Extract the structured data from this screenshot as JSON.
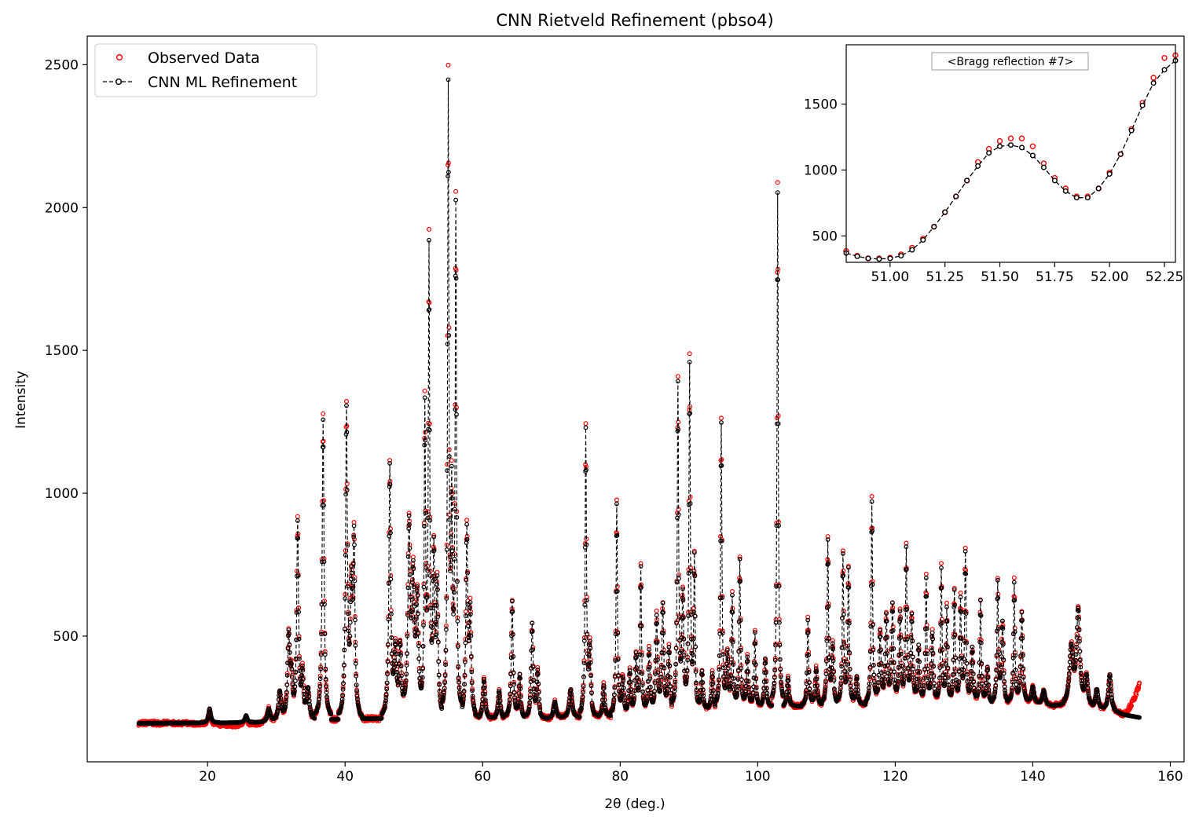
{
  "chart_data": [
    {
      "type": "scatter",
      "title": "CNN Rietveld Refinement (pbso4)",
      "xlabel": "2θ (deg.)",
      "ylabel": "Intensity",
      "xlim": [
        2.5,
        162
      ],
      "ylim": [
        60,
        2600
      ],
      "xticks": [
        20,
        40,
        60,
        80,
        100,
        120,
        140,
        160
      ],
      "yticks": [
        500,
        1000,
        1500,
        2000,
        2500
      ],
      "grid": false,
      "legend_position": "top-left",
      "x_range_data": [
        10,
        155.5
      ],
      "series": [
        {
          "name": "Observed Data",
          "style": "open-circle-markers",
          "color": "#ff0000",
          "noise_amplitude": 8,
          "peak_intensity_scale": 1.02,
          "background_low": [
            [
              10,
              215
            ],
            [
              17,
              195
            ],
            [
              24,
              188
            ],
            [
              28,
              195
            ]
          ],
          "background_high": [
            [
              153,
              262
            ],
            [
              155.5,
              330
            ]
          ]
        },
        {
          "name": "CNN ML Refinement",
          "style": "dashed-line-with-open-circle-markers",
          "color": "#000000",
          "noise_amplitude": 0,
          "peak_intensity_scale": 1.0
        }
      ],
      "background": [
        [
          10,
          195
        ],
        [
          20,
          196
        ],
        [
          28,
          198
        ],
        [
          34,
          205
        ],
        [
          40,
          210
        ],
        [
          46,
          212
        ],
        [
          52,
          212
        ],
        [
          60,
          208
        ],
        [
          70,
          210
        ],
        [
          80,
          220
        ],
        [
          90,
          235
        ],
        [
          100,
          250
        ],
        [
          110,
          258
        ],
        [
          120,
          262
        ],
        [
          140,
          262
        ],
        [
          150,
          240
        ],
        [
          155.5,
          215
        ]
      ],
      "peaks": [
        [
          20.3,
          50,
          0.25
        ],
        [
          25.6,
          25,
          0.25
        ],
        [
          28.9,
          45,
          0.3
        ],
        [
          30.5,
          100,
          0.3
        ],
        [
          31.8,
          300,
          0.25
        ],
        [
          32.2,
          120,
          0.2
        ],
        [
          33.1,
          680,
          0.2
        ],
        [
          33.8,
          150,
          0.2
        ],
        [
          34.6,
          110,
          0.3
        ],
        [
          36.8,
          1050,
          0.2
        ],
        [
          40.2,
          1065,
          0.2
        ],
        [
          40.9,
          400,
          0.2
        ],
        [
          41.3,
          600,
          0.2
        ],
        [
          46.5,
          880,
          0.2
        ],
        [
          47.3,
          220,
          0.25
        ],
        [
          48.0,
          240,
          0.25
        ],
        [
          49.3,
          650,
          0.25
        ],
        [
          49.9,
          450,
          0.25
        ],
        [
          50.5,
          400,
          0.25
        ],
        [
          51.6,
          1050,
          0.15
        ],
        [
          52.2,
          1600,
          0.15
        ],
        [
          52.9,
          550,
          0.2
        ],
        [
          53.4,
          450,
          0.2
        ],
        [
          55.0,
          2200,
          0.15
        ],
        [
          55.5,
          700,
          0.15
        ],
        [
          56.1,
          1790,
          0.15
        ],
        [
          57.7,
          650,
          0.2
        ],
        [
          58.2,
          350,
          0.2
        ],
        [
          60.2,
          140,
          0.25
        ],
        [
          62.4,
          100,
          0.25
        ],
        [
          64.3,
          410,
          0.2
        ],
        [
          65.4,
          150,
          0.2
        ],
        [
          67.2,
          330,
          0.2
        ],
        [
          68.0,
          160,
          0.2
        ],
        [
          70.5,
          60,
          0.3
        ],
        [
          72.8,
          100,
          0.3
        ],
        [
          75.0,
          1000,
          0.15
        ],
        [
          75.6,
          230,
          0.2
        ],
        [
          77.6,
          110,
          0.2
        ],
        [
          79.5,
          740,
          0.15
        ],
        [
          80.4,
          130,
          0.2
        ],
        [
          81.4,
          150,
          0.2
        ],
        [
          82.3,
          200,
          0.2
        ],
        [
          83.0,
          510,
          0.15
        ],
        [
          84.2,
          220,
          0.2
        ],
        [
          85.3,
          330,
          0.2
        ],
        [
          86.2,
          370,
          0.2
        ],
        [
          87.1,
          220,
          0.2
        ],
        [
          88.4,
          1140,
          0.15
        ],
        [
          89.1,
          400,
          0.2
        ],
        [
          90.1,
          1200,
          0.15
        ],
        [
          90.8,
          520,
          0.15
        ],
        [
          91.9,
          140,
          0.2
        ],
        [
          93.4,
          130,
          0.2
        ],
        [
          94.7,
          1000,
          0.15
        ],
        [
          95.6,
          180,
          0.2
        ],
        [
          96.3,
          390,
          0.15
        ],
        [
          97.4,
          520,
          0.15
        ],
        [
          98.5,
          180,
          0.2
        ],
        [
          99.6,
          260,
          0.15
        ],
        [
          101.1,
          170,
          0.2
        ],
        [
          102.9,
          1800,
          0.14
        ],
        [
          104.4,
          100,
          0.2
        ],
        [
          107.3,
          300,
          0.15
        ],
        [
          108.5,
          130,
          0.2
        ],
        [
          110.2,
          570,
          0.15
        ],
        [
          110.9,
          200,
          0.2
        ],
        [
          112.4,
          520,
          0.15
        ],
        [
          113.2,
          470,
          0.15
        ],
        [
          114.4,
          100,
          0.2
        ],
        [
          116.6,
          710,
          0.15
        ],
        [
          117.8,
          250,
          0.2
        ],
        [
          118.7,
          300,
          0.2
        ],
        [
          119.6,
          340,
          0.2
        ],
        [
          120.7,
          310,
          0.2
        ],
        [
          121.6,
          530,
          0.15
        ],
        [
          122.4,
          300,
          0.2
        ],
        [
          123.4,
          200,
          0.2
        ],
        [
          124.5,
          430,
          0.15
        ],
        [
          125.4,
          250,
          0.2
        ],
        [
          126.7,
          470,
          0.15
        ],
        [
          127.5,
          330,
          0.15
        ],
        [
          128.6,
          400,
          0.15
        ],
        [
          129.5,
          360,
          0.15
        ],
        [
          130.2,
          520,
          0.15
        ],
        [
          131.2,
          200,
          0.2
        ],
        [
          132.4,
          360,
          0.15
        ],
        [
          133.4,
          130,
          0.2
        ],
        [
          134.9,
          420,
          0.15
        ],
        [
          135.6,
          280,
          0.2
        ],
        [
          137.3,
          420,
          0.15
        ],
        [
          138.4,
          320,
          0.2
        ],
        [
          140.0,
          60,
          0.3
        ],
        [
          141.6,
          50,
          0.3
        ],
        [
          145.6,
          200,
          0.4
        ],
        [
          146.6,
          330,
          0.35
        ],
        [
          147.8,
          100,
          0.3
        ],
        [
          149.3,
          70,
          0.3
        ],
        [
          151.2,
          130,
          0.3
        ]
      ]
    },
    {
      "type": "scatter",
      "annotation": "<Bragg reflection #7>",
      "xlim": [
        50.8,
        52.3
      ],
      "ylim": [
        300,
        1950
      ],
      "xticks": [
        "51.00",
        "51.25",
        "51.50",
        "51.75",
        "52.00",
        "52.25"
      ],
      "yticks": [
        500,
        1000,
        1500
      ],
      "x_values": [
        50.8,
        50.85,
        50.9,
        50.95,
        51.0,
        51.05,
        51.1,
        51.15,
        51.2,
        51.25,
        51.3,
        51.35,
        51.4,
        51.45,
        51.5,
        51.55,
        51.6,
        51.65,
        51.7,
        51.75,
        51.8,
        51.85,
        51.9,
        51.95,
        52.0,
        52.05,
        52.1,
        52.15,
        52.2,
        52.25,
        52.3
      ],
      "series": [
        {
          "name": "Observed Data",
          "color": "#ff0000",
          "values": [
            385,
            350,
            330,
            330,
            335,
            360,
            410,
            480,
            570,
            680,
            800,
            920,
            1060,
            1160,
            1220,
            1240,
            1240,
            1180,
            1050,
            940,
            860,
            800,
            800,
            860,
            980,
            1120,
            1310,
            1510,
            1700,
            1850,
            1870
          ]
        },
        {
          "name": "CNN ML Refinement",
          "color": "#000000",
          "values": [
            370,
            345,
            330,
            325,
            330,
            350,
            395,
            470,
            570,
            680,
            800,
            920,
            1030,
            1130,
            1180,
            1190,
            1170,
            1110,
            1020,
            920,
            840,
            790,
            790,
            860,
            970,
            1120,
            1300,
            1490,
            1660,
            1760,
            1830
          ]
        }
      ]
    }
  ]
}
